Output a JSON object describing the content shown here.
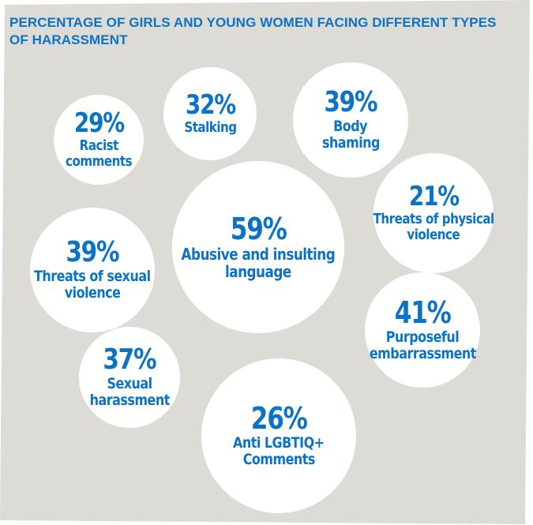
{
  "colors": {
    "text_blue": "#0b73c6",
    "panel_gray": "#dcdbd6",
    "bubble_white": "#ffffff"
  },
  "chart_data": {
    "type": "bubble",
    "title": "PERCENTAGE OF GIRLS AND YOUNG WOMEN FACING DIFFERENT TYPES OF HARASSMENT",
    "unit": "%",
    "categories": [
      "Racist comments",
      "Stalking",
      "Body shaming",
      "Threats of physical violence",
      "Abusive and insulting language",
      "Threats of sexual violence",
      "Purposeful embarrassment",
      "Sexual harassment",
      "Anti LGBTIQ+ Comments"
    ],
    "values": [
      29,
      32,
      39,
      21,
      59,
      39,
      41,
      37,
      26
    ],
    "value_labels": [
      "29%",
      "32%",
      "39%",
      "21%",
      "59%",
      "39%",
      "41%",
      "37%",
      "26%"
    ],
    "label_lines": [
      [
        "Racist",
        "comments"
      ],
      [
        "Stalking"
      ],
      [
        "Body",
        "shaming"
      ],
      [
        "Threats of physical",
        "violence"
      ],
      [
        "Abusive and insulting",
        "language"
      ],
      [
        "Threats of sexual",
        "violence"
      ],
      [
        "Purposeful",
        "embarrassment"
      ],
      [
        "Sexual",
        "harassment"
      ],
      [
        "Anti LGBTIQ+",
        "Comments"
      ]
    ]
  }
}
